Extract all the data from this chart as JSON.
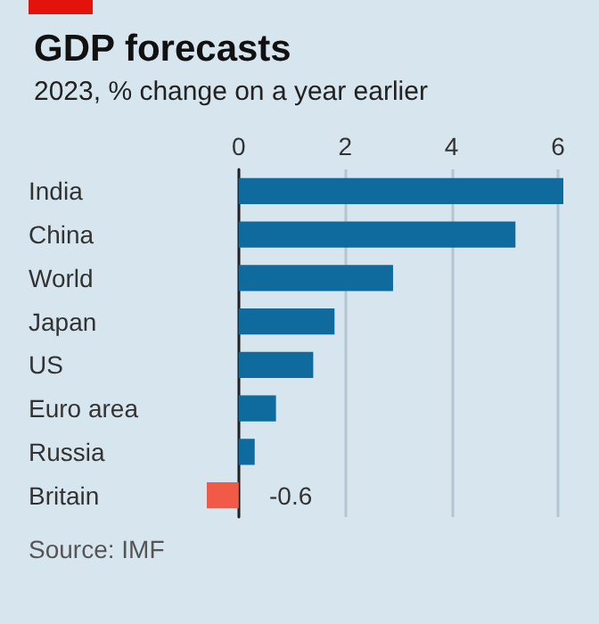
{
  "chart_data": {
    "type": "bar",
    "orientation": "horizontal",
    "title": "GDP forecasts",
    "subtitle": "2023, % change on a year earlier",
    "categories": [
      "India",
      "China",
      "World",
      "Japan",
      "US",
      "Euro area",
      "Russia",
      "Britain"
    ],
    "values": [
      6.1,
      5.2,
      2.9,
      1.8,
      1.4,
      0.7,
      0.3,
      -0.6
    ],
    "colors": [
      "#0f6b9e",
      "#0f6b9e",
      "#0f6b9e",
      "#0f6b9e",
      "#0f6b9e",
      "#0f6b9e",
      "#0f6b9e",
      "#f05a47"
    ],
    "value_labels": [
      null,
      null,
      null,
      null,
      null,
      null,
      null,
      "-0.6"
    ],
    "xlim": [
      -0.6,
      6.1
    ],
    "xticks": [
      0,
      2,
      4,
      6
    ],
    "grid": "x",
    "annotations": [
      "Source: IMF"
    ]
  }
}
